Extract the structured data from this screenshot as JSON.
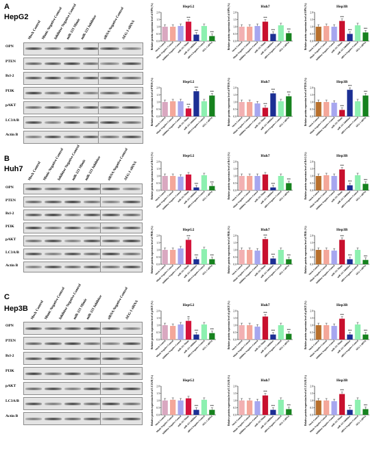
{
  "panels": [
    {
      "letter": "A",
      "cell": "HepG2"
    },
    {
      "letter": "B",
      "cell": "Huh7"
    },
    {
      "letter": "C",
      "cell": "Hep3B"
    }
  ],
  "blot": {
    "lanes": [
      "Mock Control",
      "Mimic Negative Control",
      "Inhibitor Negative Control",
      "miR-221 Mimic",
      "miR-221 Inhibitor",
      "siRNA Negative Control",
      "AEG-1 siRNA"
    ],
    "proteins": [
      "OPN",
      "PTEN",
      "Bcl-2",
      "PI3K",
      "pAKT",
      "LC3A/B",
      "Actin B"
    ]
  },
  "chart_data": {
    "type": "bar",
    "categories": [
      "Mock Control",
      "Mimic Negative Control",
      "Inhibitor Negative Control",
      "miR-221 Mimic",
      "miR-221 Inhibitor",
      "siRNA Negative Control",
      "AEG-1 siRNA"
    ],
    "colors": {
      "HepG2": [
        "#d9a8c0",
        "#f4a79a",
        "#a6a6ef",
        "#d4143c",
        "#1c2f94",
        "#8df0b0",
        "#16821e"
      ],
      "Huh7": [
        "#f2b0b2",
        "#f4a79a",
        "#a6a6ef",
        "#c8102e",
        "#1c2f94",
        "#8df0b0",
        "#16821e"
      ],
      "Hep3B": [
        "#b8702d",
        "#f4a79a",
        "#a6a6ef",
        "#c8102e",
        "#1c2f94",
        "#8df0b0",
        "#16821e"
      ]
    },
    "ylim": [
      0,
      2
    ],
    "yticks": [
      "0.0",
      "0.5",
      "1.0",
      "1.5",
      "2.0"
    ],
    "ylabel_prefix": "Relative protein expression",
    "rows": [
      {
        "ylabel": "Relative protein expression level of OPN (%)",
        "charts": [
          {
            "title": "HepG2",
            "values": [
              1.0,
              1.0,
              1.05,
              1.35,
              0.45,
              1.05,
              0.35
            ],
            "marks": [
              "",
              "",
              "",
              "***",
              "***",
              "",
              "***"
            ]
          },
          {
            "title": "Huh7",
            "values": [
              1.0,
              1.0,
              1.05,
              1.35,
              0.5,
              1.1,
              0.55
            ],
            "marks": [
              "",
              "",
              "",
              "***",
              "***",
              "",
              "***"
            ]
          },
          {
            "title": "Hep3B",
            "values": [
              1.0,
              1.05,
              1.0,
              1.4,
              0.5,
              1.1,
              0.6
            ],
            "marks": [
              "",
              "",
              "",
              "***",
              "***",
              "",
              "***"
            ]
          }
        ]
      },
      {
        "ylabel": "Relative protein expression level of PTEN (%)",
        "charts": [
          {
            "title": "HepG2",
            "values": [
              1.0,
              1.05,
              1.05,
              0.55,
              1.75,
              1.05,
              1.45
            ],
            "marks": [
              "",
              "",
              "",
              "***",
              "***",
              "",
              "***"
            ]
          },
          {
            "title": "Huh7",
            "values": [
              1.0,
              1.0,
              0.9,
              0.6,
              1.6,
              1.05,
              1.4
            ],
            "marks": [
              "",
              "",
              "",
              "***",
              "***",
              "",
              "***"
            ]
          },
          {
            "title": "Hep3B",
            "values": [
              1.0,
              1.0,
              0.95,
              0.45,
              1.85,
              1.05,
              1.45
            ],
            "marks": [
              "",
              "",
              "",
              "***",
              "***",
              "",
              "***"
            ]
          }
        ]
      },
      {
        "ylabel": "Relative protein expression level of Bcl-2 (%)",
        "charts": [
          {
            "title": "HepG2",
            "values": [
              1.0,
              1.0,
              0.95,
              1.1,
              0.2,
              1.05,
              0.3
            ],
            "marks": [
              "",
              "",
              "",
              "",
              "***",
              "",
              "***"
            ]
          },
          {
            "title": "Huh7",
            "values": [
              1.0,
              1.0,
              1.0,
              1.1,
              0.2,
              1.0,
              0.5
            ],
            "marks": [
              "",
              "",
              "",
              "",
              "***",
              "",
              "***"
            ]
          },
          {
            "title": "Hep3B",
            "values": [
              1.0,
              1.05,
              1.0,
              1.45,
              0.35,
              1.05,
              0.45
            ],
            "marks": [
              "",
              "",
              "",
              "***",
              "***",
              "",
              "***"
            ]
          }
        ]
      },
      {
        "ylabel": "Relative protein expression level of PI3K (%)",
        "charts": [
          {
            "title": "HepG2",
            "values": [
              1.0,
              1.0,
              1.1,
              1.7,
              0.35,
              1.05,
              0.35
            ],
            "marks": [
              "",
              "",
              "",
              "***",
              "***",
              "",
              "***"
            ]
          },
          {
            "title": "Huh7",
            "values": [
              1.0,
              1.0,
              0.95,
              1.75,
              0.4,
              1.0,
              0.35
            ],
            "marks": [
              "",
              "",
              "",
              "***",
              "***",
              "",
              "***"
            ]
          },
          {
            "title": "Hep3B",
            "values": [
              1.0,
              1.0,
              0.95,
              1.7,
              0.35,
              1.0,
              0.3
            ],
            "marks": [
              "",
              "",
              "",
              "***",
              "***",
              "",
              "***"
            ]
          }
        ]
      },
      {
        "ylabel": "Relative protein expression level of pAKT (%)",
        "charts": [
          {
            "title": "HepG2",
            "values": [
              1.0,
              0.95,
              1.05,
              1.3,
              0.35,
              1.05,
              0.45
            ],
            "marks": [
              "",
              "",
              "",
              "**",
              "***",
              "",
              "***"
            ]
          },
          {
            "title": "Huh7",
            "values": [
              1.0,
              1.0,
              0.9,
              1.6,
              0.35,
              1.0,
              0.4
            ],
            "marks": [
              "",
              "",
              "",
              "***",
              "***",
              "",
              "***"
            ]
          },
          {
            "title": "Hep3B",
            "values": [
              1.0,
              1.0,
              0.95,
              1.45,
              0.35,
              1.05,
              0.35
            ],
            "marks": [
              "",
              "",
              "",
              "***",
              "***",
              "",
              "***"
            ]
          }
        ]
      },
      {
        "ylabel": "Relative protein expression level of LC3A/B (%)",
        "charts": [
          {
            "title": "HepG2",
            "values": [
              1.0,
              1.05,
              1.0,
              1.15,
              0.35,
              1.05,
              0.35
            ],
            "marks": [
              "",
              "",
              "",
              "",
              "***",
              "",
              "***"
            ]
          },
          {
            "title": "Huh7",
            "values": [
              1.0,
              1.0,
              0.95,
              1.35,
              0.35,
              1.05,
              0.4
            ],
            "marks": [
              "",
              "",
              "",
              "***",
              "***",
              "",
              "***"
            ]
          },
          {
            "title": "Hep3B",
            "values": [
              1.0,
              1.0,
              0.95,
              1.45,
              0.35,
              1.05,
              0.4
            ],
            "marks": [
              "",
              "",
              "",
              "***",
              "***",
              "",
              "***"
            ]
          }
        ]
      }
    ]
  }
}
